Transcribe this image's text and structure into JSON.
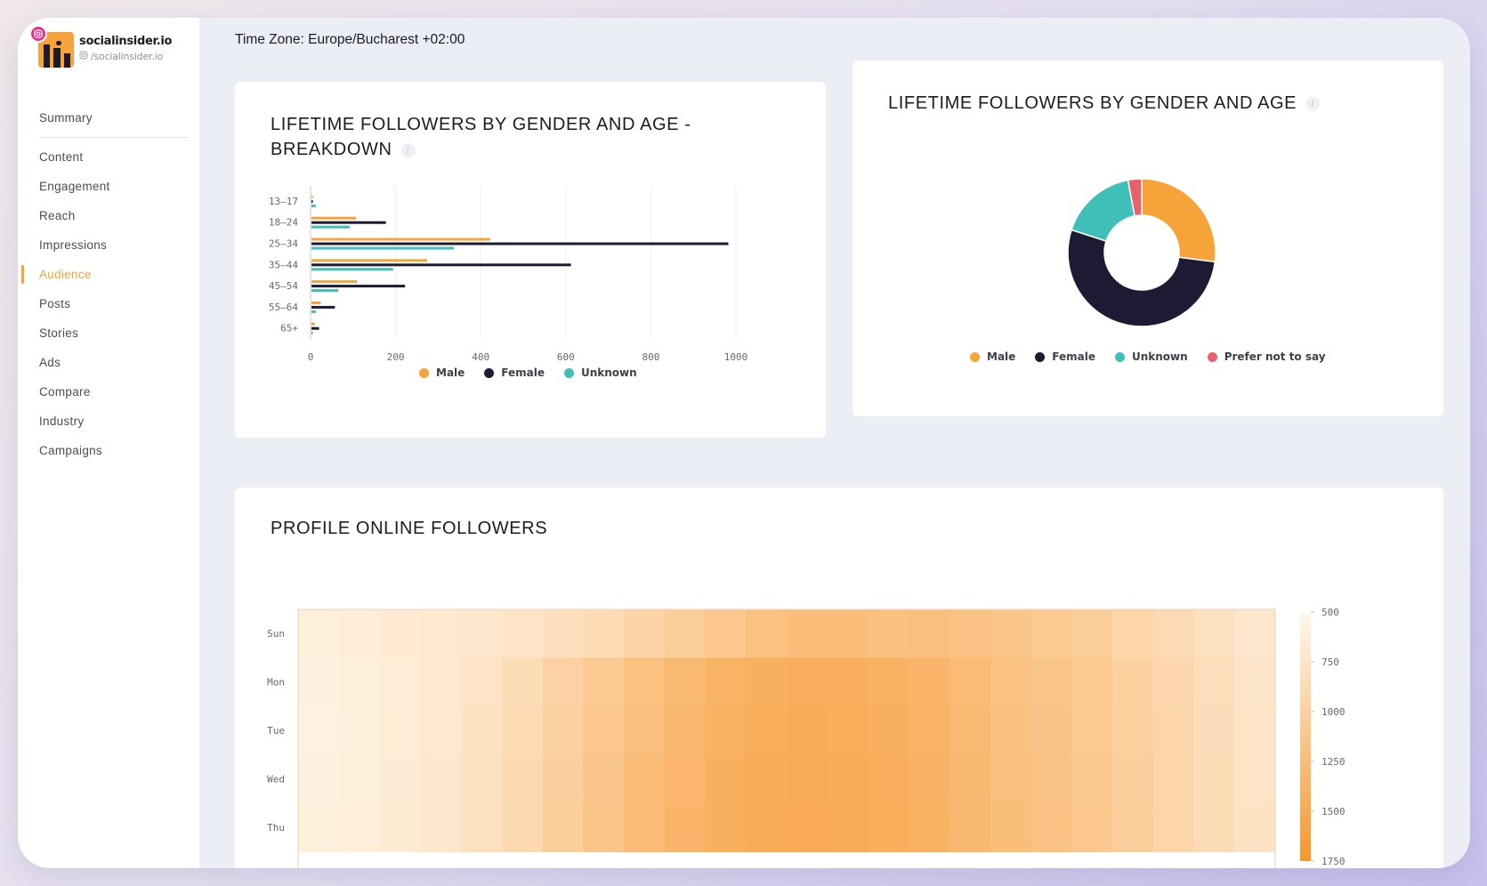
{
  "brand": {
    "name": "socialinsider.io",
    "handle": "/socialinsider.io"
  },
  "sidebar": {
    "items": [
      {
        "label": "Summary"
      },
      {
        "label": "Content"
      },
      {
        "label": "Engagement"
      },
      {
        "label": "Reach"
      },
      {
        "label": "Impressions"
      },
      {
        "label": "Audience",
        "active": true
      },
      {
        "label": "Posts"
      },
      {
        "label": "Stories"
      },
      {
        "label": "Ads"
      },
      {
        "label": "Compare"
      },
      {
        "label": "Industry"
      },
      {
        "label": "Campaigns"
      }
    ]
  },
  "header": {
    "timezone": "Time Zone: Europe/Bucharest +02:00"
  },
  "colors": {
    "male": "#f6a43a",
    "female": "#1d1b33",
    "unknown": "#3fbfb8",
    "prefer_not": "#e8606a",
    "accent": "#f6a43a"
  },
  "cards": {
    "breakdown_title_line1": "LIFETIME FOLLOWERS BY GENDER AND AGE -",
    "breakdown_title_line2": "BREAKDOWN",
    "donut_title": "LIFETIME FOLLOWERS BY GENDER AND AGE",
    "online_title": "PROFILE ONLINE FOLLOWERS"
  },
  "chart_data": [
    {
      "type": "bar",
      "orientation": "horizontal",
      "categories": [
        "13-17",
        "18-24",
        "25-34",
        "35-44",
        "45-54",
        "55-64",
        "65+"
      ],
      "series": [
        {
          "name": "Male",
          "values": [
            3,
            105,
            420,
            272,
            107,
            22,
            8
          ]
        },
        {
          "name": "Female",
          "values": [
            2,
            175,
            980,
            610,
            220,
            55,
            18
          ]
        },
        {
          "name": "Unknown",
          "values": [
            10,
            90,
            335,
            192,
            63,
            10,
            3
          ]
        }
      ],
      "xlim": [
        0,
        1000
      ],
      "xticks": [
        0,
        200,
        400,
        600,
        800,
        1000
      ],
      "legend": "bottom"
    },
    {
      "type": "pie",
      "variant": "donut",
      "labels": [
        "Male",
        "Female",
        "Unknown",
        "Prefer not to say"
      ],
      "values": [
        27,
        53,
        17,
        3
      ],
      "legend": "bottom"
    },
    {
      "type": "heatmap",
      "y_categories": [
        "Sun",
        "Mon",
        "Tue",
        "Wed",
        "Thu"
      ],
      "x_count": 24,
      "values": [
        [
          620,
          640,
          680,
          700,
          720,
          760,
          820,
          870,
          960,
          1050,
          1120,
          1200,
          1250,
          1250,
          1220,
          1230,
          1180,
          1150,
          1100,
          1050,
          950,
          880,
          800,
          720
        ],
        [
          600,
          620,
          650,
          700,
          760,
          850,
          980,
          1100,
          1200,
          1300,
          1380,
          1420,
          1440,
          1440,
          1400,
          1350,
          1280,
          1200,
          1150,
          1100,
          1000,
          920,
          830,
          740
        ],
        [
          590,
          610,
          650,
          700,
          780,
          880,
          1000,
          1120,
          1230,
          1330,
          1400,
          1450,
          1460,
          1450,
          1420,
          1380,
          1300,
          1220,
          1160,
          1100,
          1010,
          930,
          840,
          750
        ],
        [
          600,
          620,
          660,
          710,
          790,
          890,
          1020,
          1140,
          1250,
          1340,
          1420,
          1470,
          1480,
          1470,
          1440,
          1390,
          1310,
          1230,
          1170,
          1110,
          1020,
          940,
          850,
          760
        ],
        [
          610,
          630,
          670,
          720,
          800,
          900,
          1030,
          1150,
          1260,
          1350,
          1430,
          1480,
          1490,
          1480,
          1450,
          1400,
          1320,
          1240,
          1180,
          1120,
          1030,
          950,
          860,
          770
        ]
      ],
      "colorbar_ticks": [
        500,
        750,
        1000,
        1250,
        1500,
        1750
      ],
      "colorbar_range": [
        500,
        1750
      ]
    }
  ]
}
